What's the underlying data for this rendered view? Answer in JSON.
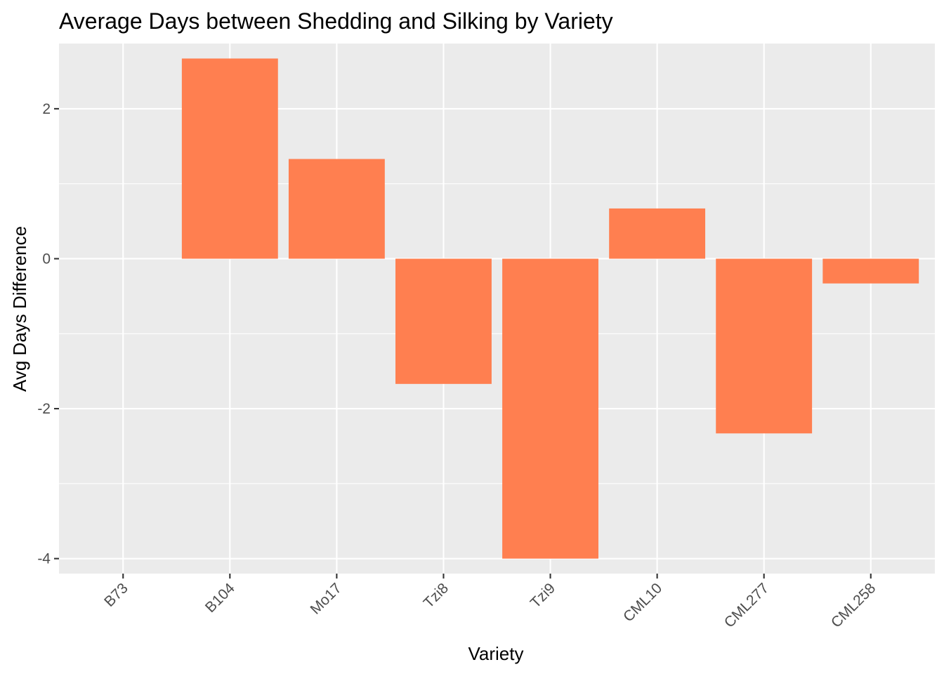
{
  "chart_data": {
    "type": "bar",
    "title": "Average Days between Shedding and Silking by Variety",
    "xlabel": "Variety",
    "ylabel": "Avg Days Difference",
    "categories": [
      "B73",
      "B104",
      "Mo17",
      "Tzi8",
      "Tzi9",
      "CML10",
      "CML277",
      "CML258"
    ],
    "values": [
      0,
      2.67,
      1.33,
      -1.67,
      -4,
      0.67,
      -2.33,
      -0.33
    ],
    "yticks": [
      -4,
      -2,
      0,
      2
    ],
    "ylim": [
      -4.2,
      2.87
    ],
    "grid": true,
    "bar_color": "#FF7F50",
    "panel_color": "#EBEBEB",
    "grid_color": "#FFFFFF"
  }
}
